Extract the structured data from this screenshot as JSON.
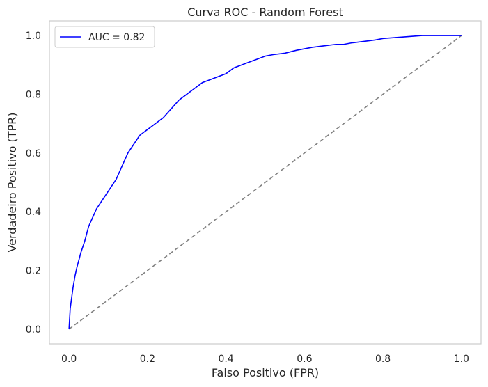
{
  "chart_data": {
    "type": "line",
    "title": "Curva ROC - Random Forest",
    "xlabel": "Falso Positivo (FPR)",
    "ylabel": "Verdadeiro Positivo (TPR)",
    "xlim": [
      -0.05,
      1.05
    ],
    "ylim": [
      -0.05,
      1.05
    ],
    "xticks": [
      "0.0",
      "0.2",
      "0.4",
      "0.6",
      "0.8",
      "1.0"
    ],
    "yticks": [
      "0.0",
      "0.2",
      "0.4",
      "0.6",
      "0.8",
      "1.0"
    ],
    "grid": false,
    "legend_position": "upper left",
    "series": [
      {
        "name": "AUC = 0.82",
        "color": "#0000ff",
        "style": "solid",
        "x": [
          0.0,
          0.003,
          0.006,
          0.01,
          0.015,
          0.02,
          0.03,
          0.04,
          0.05,
          0.06,
          0.07,
          0.08,
          0.09,
          0.1,
          0.11,
          0.12,
          0.13,
          0.14,
          0.15,
          0.16,
          0.17,
          0.18,
          0.19,
          0.2,
          0.22,
          0.24,
          0.26,
          0.28,
          0.3,
          0.32,
          0.34,
          0.36,
          0.38,
          0.4,
          0.42,
          0.44,
          0.46,
          0.48,
          0.5,
          0.52,
          0.55,
          0.58,
          0.6,
          0.62,
          0.65,
          0.68,
          0.7,
          0.72,
          0.75,
          0.78,
          0.8,
          0.85,
          0.9,
          0.95,
          1.0
        ],
        "y": [
          0.0,
          0.07,
          0.1,
          0.14,
          0.18,
          0.21,
          0.26,
          0.3,
          0.35,
          0.38,
          0.41,
          0.43,
          0.45,
          0.47,
          0.49,
          0.51,
          0.54,
          0.57,
          0.6,
          0.62,
          0.64,
          0.66,
          0.67,
          0.68,
          0.7,
          0.72,
          0.75,
          0.78,
          0.8,
          0.82,
          0.84,
          0.85,
          0.86,
          0.87,
          0.89,
          0.9,
          0.91,
          0.92,
          0.93,
          0.935,
          0.94,
          0.95,
          0.955,
          0.96,
          0.965,
          0.97,
          0.97,
          0.975,
          0.98,
          0.985,
          0.99,
          0.995,
          1.0,
          1.0,
          1.0
        ]
      },
      {
        "name": "",
        "color": "#808080",
        "style": "dashed",
        "x": [
          0.0,
          1.0
        ],
        "y": [
          0.0,
          1.0
        ]
      }
    ]
  }
}
